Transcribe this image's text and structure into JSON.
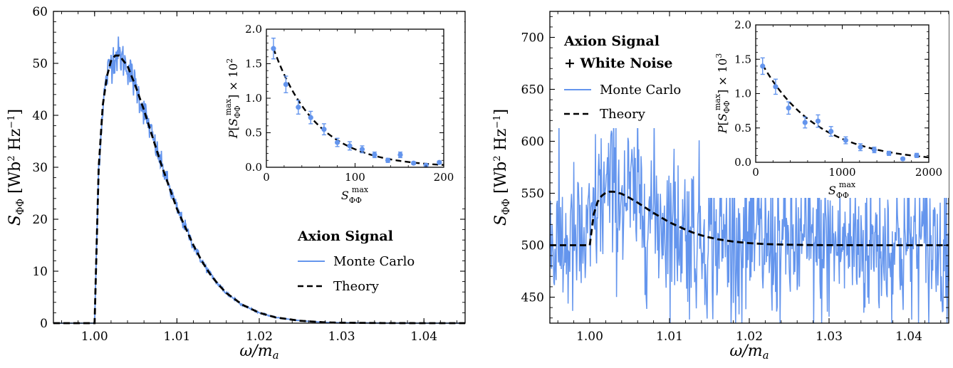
{
  "colors": {
    "monte_carlo": "#6495ED",
    "theory": "#000000",
    "errorbar": "#6495ED"
  },
  "chart_data": [
    {
      "type": "line",
      "xlabel": "ω/m_a",
      "ylabel": "S_ΦΦ [Wb² Hz⁻¹]",
      "xlim": [
        0.995,
        1.045
      ],
      "ylim": [
        0,
        60
      ],
      "xticks": [
        1.0,
        1.01,
        1.02,
        1.03,
        1.04
      ],
      "xtick_labels": [
        "1.00",
        "1.01",
        "1.02",
        "1.03",
        "1.04"
      ],
      "yticks": [
        0,
        10,
        20,
        30,
        40,
        50,
        60
      ],
      "ytick_labels": [
        "0",
        "10",
        "20",
        "30",
        "40",
        "50",
        "60"
      ],
      "legend": {
        "title": "Axion Signal",
        "entries": [
          "Monte Carlo",
          "Theory"
        ],
        "placement": "center-right"
      },
      "theory": {
        "x": [
          0.995,
          0.99995,
          1.0,
          1.0005,
          1.001,
          1.0015,
          1.002,
          1.0025,
          1.003,
          1.004,
          1.005,
          1.006,
          1.007,
          1.008,
          1.009,
          1.01,
          1.011,
          1.012,
          1.013,
          1.014,
          1.015,
          1.016,
          1.018,
          1.02,
          1.022,
          1.025,
          1.028,
          1.03,
          1.035,
          1.04,
          1.045
        ],
        "y": [
          0,
          0,
          0,
          30,
          42,
          47.5,
          50.5,
          51.5,
          51.5,
          49.5,
          45.5,
          41,
          36,
          31,
          26.5,
          22,
          18.5,
          15,
          12,
          9.5,
          7.5,
          5.8,
          3.5,
          2.0,
          1.1,
          0.45,
          0.15,
          0.08,
          0.02,
          0.0,
          0.0
        ]
      },
      "monte_carlo_noise_amp": 0.035,
      "inset": {
        "type": "scatter",
        "xlabel": "S_ΦΦ^max",
        "ylabel": "P[S_ΦΦ^max] × 10²",
        "xlim": [
          0,
          200
        ],
        "ylim": [
          0,
          2.0
        ],
        "xticks": [
          0,
          100,
          200
        ],
        "xtick_labels": [
          "0",
          "100",
          "200"
        ],
        "yticks": [
          0,
          0.5,
          1.0,
          1.5,
          2.0
        ],
        "ytick_labels": [
          "0.0",
          "0.5",
          "1.0",
          "1.5",
          "2.0"
        ],
        "points": {
          "x": [
            8,
            22,
            36,
            50,
            65,
            80,
            94,
            108,
            122,
            137,
            151,
            166,
            180,
            195
          ],
          "y": [
            1.72,
            1.2,
            0.87,
            0.72,
            0.55,
            0.36,
            0.31,
            0.26,
            0.18,
            0.1,
            0.18,
            0.06,
            0.03,
            0.07
          ],
          "err": [
            0.15,
            0.12,
            0.1,
            0.09,
            0.08,
            0.06,
            0.06,
            0.05,
            0.04,
            0.03,
            0.04,
            0.02,
            0.02,
            0.02
          ]
        },
        "theory_scale": 1.72,
        "theory_decay": 0.0205,
        "theory_x0": 8
      }
    },
    {
      "type": "line",
      "xlabel": "ω/m_a",
      "ylabel": "S_ΦΦ [Wb² Hz⁻¹]",
      "xlim": [
        0.995,
        1.045
      ],
      "ylim": [
        425,
        725
      ],
      "xticks": [
        1.0,
        1.01,
        1.02,
        1.03,
        1.04
      ],
      "xtick_labels": [
        "1.00",
        "1.01",
        "1.02",
        "1.03",
        "1.04"
      ],
      "yticks": [
        450,
        500,
        550,
        600,
        650,
        700
      ],
      "ytick_labels": [
        "450",
        "500",
        "550",
        "600",
        "650",
        "700"
      ],
      "legend": {
        "title_line1": "Axion Signal",
        "title_line2": "+ White Noise",
        "entries": [
          "Monte Carlo",
          "Theory"
        ],
        "placement": "top-left"
      },
      "theory_baseline": 500,
      "theory_signal_scale": 1.0,
      "monte_carlo_noise_amp": 38,
      "inset": {
        "type": "scatter",
        "xlabel": "S_ΦΦ^max",
        "ylabel": "P[S_ΦΦ^max] × 10³",
        "xlim": [
          0,
          2000
        ],
        "ylim": [
          0,
          2.0
        ],
        "xticks": [
          0,
          1000,
          2000
        ],
        "xtick_labels": [
          "0",
          "1000",
          "2000"
        ],
        "yticks": [
          0,
          0.5,
          1.0,
          1.5,
          2.0
        ],
        "ytick_labels": [
          "0.0",
          "0.5",
          "1.0",
          "1.5",
          "2.0"
        ],
        "points": {
          "x": [
            80,
            230,
            380,
            570,
            720,
            870,
            1040,
            1210,
            1370,
            1540,
            1700,
            1860
          ],
          "y": [
            1.4,
            1.1,
            0.79,
            0.58,
            0.6,
            0.45,
            0.32,
            0.22,
            0.18,
            0.13,
            0.05,
            0.1
          ],
          "err": [
            0.12,
            0.11,
            0.09,
            0.08,
            0.09,
            0.07,
            0.05,
            0.05,
            0.04,
            0.03,
            0.02,
            0.03
          ]
        },
        "theory_scale": 1.42,
        "theory_decay": 0.00155,
        "theory_x0": 80
      }
    }
  ]
}
